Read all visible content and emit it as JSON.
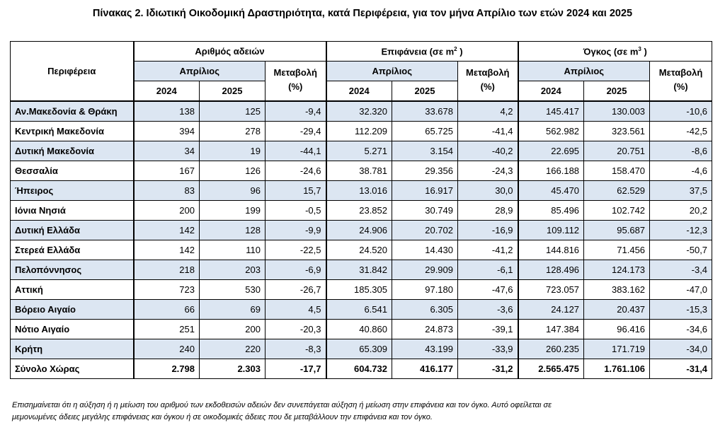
{
  "title": "Πίνακας 2. Ιδιωτική Οικοδομική Δραστηριότητα, κατά  Περιφέρεια, για τον μήνα Απρίλιο των ετών 2024 και 2025",
  "headers": {
    "region": "Περιφέρεια",
    "permits": "Αριθμός αδειών",
    "area": "Επιφάνεια (σε m",
    "area_sup": "2",
    "area_end": " )",
    "volume": "Όγκος (σε m",
    "volume_sup": "3",
    "volume_end": " )",
    "april": "Απρίλιος",
    "change_line1": "Μεταβολή",
    "change_line2": "(%)",
    "year1": "2024",
    "year2": "2025"
  },
  "rows": [
    {
      "region": "Αν.Μακεδονία & Θράκη",
      "p24": "138",
      "p25": "125",
      "pch": "-9,4",
      "a24": "32.320",
      "a25": "33.678",
      "ach": "4,2",
      "v24": "145.417",
      "v25": "130.003",
      "vch": "-10,6"
    },
    {
      "region": "Κεντρική Μακεδονία",
      "p24": "394",
      "p25": "278",
      "pch": "-29,4",
      "a24": "112.209",
      "a25": "65.725",
      "ach": "-41,4",
      "v24": "562.982",
      "v25": "323.561",
      "vch": "-42,5"
    },
    {
      "region": "Δυτική Μακεδονία",
      "p24": "34",
      "p25": "19",
      "pch": "-44,1",
      "a24": "5.271",
      "a25": "3.154",
      "ach": "-40,2",
      "v24": "22.695",
      "v25": "20.751",
      "vch": "-8,6"
    },
    {
      "region": "Θεσσαλία",
      "p24": "167",
      "p25": "126",
      "pch": "-24,6",
      "a24": "38.781",
      "a25": "29.356",
      "ach": "-24,3",
      "v24": "166.188",
      "v25": "158.470",
      "vch": "-4,6"
    },
    {
      "region": "Ήπειρος",
      "p24": "83",
      "p25": "96",
      "pch": "15,7",
      "a24": "13.016",
      "a25": "16.917",
      "ach": "30,0",
      "v24": "45.470",
      "v25": "62.529",
      "vch": "37,5"
    },
    {
      "region": "Ιόνια Νησιά",
      "p24": "200",
      "p25": "199",
      "pch": "-0,5",
      "a24": "23.852",
      "a25": "30.749",
      "ach": "28,9",
      "v24": "85.496",
      "v25": "102.742",
      "vch": "20,2"
    },
    {
      "region": "Δυτική Ελλάδα",
      "p24": "142",
      "p25": "128",
      "pch": "-9,9",
      "a24": "24.906",
      "a25": "20.702",
      "ach": "-16,9",
      "v24": "109.112",
      "v25": "95.687",
      "vch": "-12,3"
    },
    {
      "region": "Στερεά Ελλάδα",
      "p24": "142",
      "p25": "110",
      "pch": "-22,5",
      "a24": "24.520",
      "a25": "14.430",
      "ach": "-41,2",
      "v24": "144.816",
      "v25": "71.456",
      "vch": "-50,7"
    },
    {
      "region": "Πελοπόννησος",
      "p24": "218",
      "p25": "203",
      "pch": "-6,9",
      "a24": "31.842",
      "a25": "29.909",
      "ach": "-6,1",
      "v24": "128.496",
      "v25": "124.173",
      "vch": "-3,4"
    },
    {
      "region": "Αττική",
      "p24": "723",
      "p25": "530",
      "pch": "-26,7",
      "a24": "185.305",
      "a25": "97.180",
      "ach": "-47,6",
      "v24": "723.057",
      "v25": "383.162",
      "vch": "-47,0"
    },
    {
      "region": "Βόρειο Αιγαίο",
      "p24": "66",
      "p25": "69",
      "pch": "4,5",
      "a24": "6.541",
      "a25": "6.305",
      "ach": "-3,6",
      "v24": "24.127",
      "v25": "20.437",
      "vch": "-15,3"
    },
    {
      "region": "Νότιο Αιγαίο",
      "p24": "251",
      "p25": "200",
      "pch": "-20,3",
      "a24": "40.860",
      "a25": "24.873",
      "ach": "-39,1",
      "v24": "147.384",
      "v25": "96.416",
      "vch": "-34,6"
    },
    {
      "region": "Κρήτη",
      "p24": "240",
      "p25": "220",
      "pch": "-8,3",
      "a24": "65.309",
      "a25": "43.199",
      "ach": "-33,9",
      "v24": "260.235",
      "v25": "171.719",
      "vch": "-34,0"
    }
  ],
  "total": {
    "region": "Σύνολο Χώρας",
    "p24": "2.798",
    "p25": "2.303",
    "pch": "-17,7",
    "a24": "604.732",
    "a25": "416.177",
    "ach": "-31,2",
    "v24": "2.565.475",
    "v25": "1.761.106",
    "vch": "-31,4"
  },
  "note_line1": "Επισημαίνεται ότι η αύξηση ή η μείωση του αριθμού των εκδοθεισών αδειών δεν συνεπάγεται αύξηση ή μείωση στην επιφάνεια και τον όγκο. Αυτό οφείλεται σε",
  "note_line2": "μεμονωμένες άδειες μεγάλης επιφάνειας και όγκου ή σε οικοδομικές άδειες που δε μεταβάλλουν την επιφάνεια και τον όγκο.",
  "colors": {
    "shade": "#dce6f2",
    "border": "#000000"
  }
}
